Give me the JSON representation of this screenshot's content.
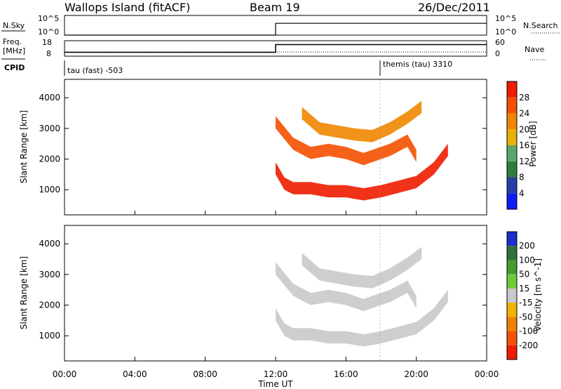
{
  "header": {
    "station": "Wallops Island (fitACF)",
    "beam": "Beam 19",
    "date": "26/Dec/2011"
  },
  "top_panels": {
    "nsky_label": "N.Sky",
    "nsearch_label": "N.Search",
    "noise_tick_top": "10^5",
    "noise_tick_bottom": "10^0",
    "freq_label_line1": "Freq.",
    "freq_label_line2": "[MHz]",
    "freq_ticks": [
      "18",
      "8"
    ],
    "nave_label": "Nave",
    "nave_ticks": [
      "60",
      "0"
    ],
    "cpid_label": "CPID",
    "cpid_mode_1": "tau (fast) -503",
    "cpid_mode_2": "themis (tau) 3310"
  },
  "chart_data": [
    {
      "type": "line",
      "title": "",
      "ylabel": "N.Sky",
      "y2label": "N.Search",
      "x_unit": "hours UT",
      "series": [
        {
          "values_x": [
            0,
            12,
            12,
            24
          ],
          "values_y": [
            1,
            1,
            1000,
            1000
          ]
        }
      ],
      "yscale": "log",
      "ylim": [
        1,
        100000
      ]
    },
    {
      "type": "line",
      "ylabel": "Freq. [MHz]",
      "y2label": "Nave",
      "ylim": [
        8,
        18
      ],
      "y2lim": [
        0,
        60
      ],
      "series": [
        {
          "x": [
            0,
            12,
            12,
            24
          ],
          "y": [
            10.5,
            10.5,
            15.5,
            15.5
          ]
        }
      ]
    },
    {
      "type": "heatmap",
      "name": "power",
      "xlabel": "Time UT",
      "ylabel": "Slant Range [km]",
      "colorbar_label": "Power [dB]",
      "xlim": [
        0,
        24
      ],
      "ylim": [
        180,
        4600
      ],
      "x_ticks": [
        "00:00",
        "04:00",
        "08:00",
        "12:00",
        "16:00",
        "20:00",
        "00:00"
      ],
      "y_ticks": [
        "1000",
        "2000",
        "3000",
        "4000"
      ],
      "colorbar_ticks": [
        "4",
        "8",
        "12",
        "16",
        "20",
        "24",
        "28"
      ],
      "colorbar_colors": [
        "#0c1cf2",
        "#263fa6",
        "#2f7d3c",
        "#5ba66a",
        "#e8b100",
        "#f08600",
        "#f55000",
        "#ee1c00"
      ],
      "colorbar_range": [
        0,
        32
      ],
      "echo_bands": [
        {
          "t": [
            12.0,
            12.5,
            13.0,
            14.0,
            15.0,
            16.0,
            17.0,
            18.0,
            19.0,
            20.0,
            21.0,
            21.8
          ],
          "r": [
            1700,
            1200,
            1050,
            1050,
            950,
            950,
            850,
            950,
            1100,
            1250,
            1700,
            2300
          ],
          "value": 28
        },
        {
          "t": [
            12.0,
            13.0,
            14.0,
            15.0,
            16.0,
            17.0,
            18.0,
            18.5,
            19.0,
            19.5,
            20.0
          ],
          "r": [
            3200,
            2500,
            2200,
            2300,
            2200,
            2000,
            2200,
            2300,
            2450,
            2600,
            2100
          ],
          "value": 24
        },
        {
          "t": [
            13.5,
            14.5,
            15.5,
            16.5,
            17.5,
            18.5,
            19.5,
            20.3
          ],
          "r": [
            3500,
            3000,
            2900,
            2800,
            2750,
            3000,
            3350,
            3700
          ],
          "value": 20
        }
      ]
    },
    {
      "type": "heatmap",
      "name": "velocity",
      "xlabel": "Time UT",
      "ylabel": "Slant Range [km]",
      "colorbar_label": "Velocity [m s^-1]",
      "xlim": [
        0,
        24
      ],
      "ylim": [
        180,
        4600
      ],
      "x_ticks": [
        "00:00",
        "04:00",
        "08:00",
        "12:00",
        "16:00",
        "20:00",
        "00:00"
      ],
      "y_ticks": [
        "1000",
        "2000",
        "3000",
        "4000"
      ],
      "colorbar_ticks": [
        "200",
        "100",
        "50",
        "15",
        "-15",
        "-50",
        "-100",
        "-200"
      ],
      "colorbar_colors": [
        "#1c2fcc",
        "#2f6f3b",
        "#449c2e",
        "#6ccc37",
        "#c9c9c9",
        "#f2b200",
        "#f08000",
        "#f55300",
        "#ee1c00"
      ],
      "echo_bands": [
        {
          "t": [
            12.0,
            12.5,
            13.0,
            14.0,
            15.0,
            16.0,
            17.0,
            18.0,
            19.0,
            20.0,
            21.0,
            21.8
          ],
          "r": [
            1700,
            1200,
            1050,
            1050,
            950,
            950,
            850,
            950,
            1100,
            1250,
            1700,
            2300
          ],
          "value": 0
        },
        {
          "t": [
            12.0,
            13.0,
            14.0,
            15.0,
            16.0,
            17.0,
            18.0,
            18.5,
            19.0,
            19.5,
            20.0
          ],
          "r": [
            3200,
            2500,
            2200,
            2300,
            2200,
            2000,
            2200,
            2300,
            2450,
            2600,
            2100
          ],
          "value": 0
        },
        {
          "t": [
            13.5,
            14.5,
            15.5,
            16.5,
            17.5,
            18.5,
            19.5,
            20.3
          ],
          "r": [
            3500,
            3000,
            2900,
            2800,
            2750,
            3000,
            3350,
            3700
          ],
          "value": 0
        }
      ]
    }
  ]
}
